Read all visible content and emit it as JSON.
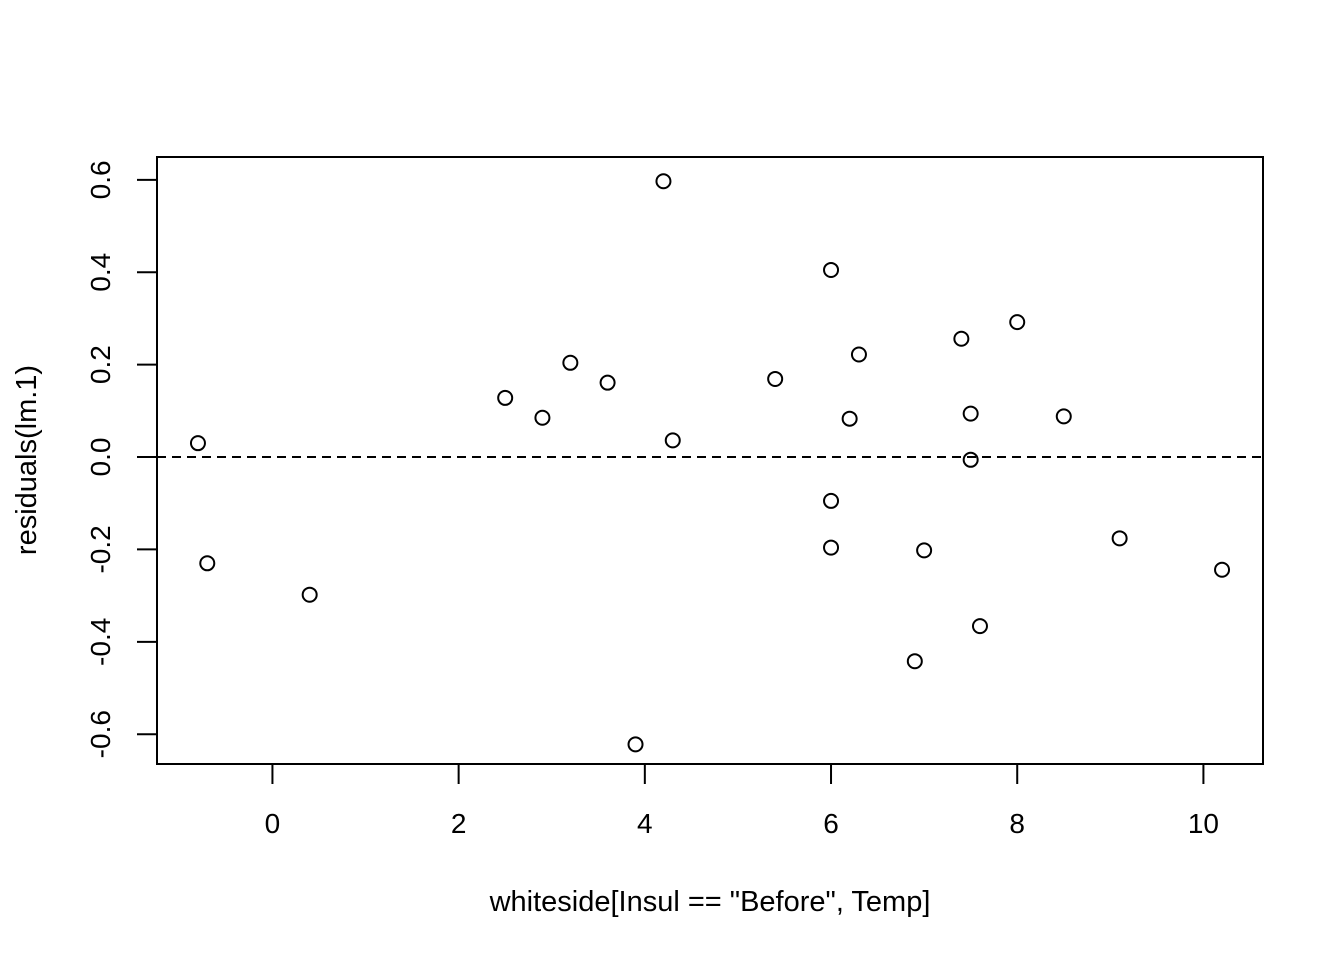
{
  "chart_data": {
    "type": "scatter",
    "xlabel": "whiteside[Insul == \"Before\", Temp]",
    "ylabel": "residuals(lm.1)",
    "xlim": [
      -1.24,
      10.64
    ],
    "ylim": [
      -0.6645,
      0.6495
    ],
    "x_ticks": [
      0,
      2,
      4,
      6,
      8,
      10
    ],
    "x_tick_labels": [
      "0",
      "2",
      "4",
      "6",
      "8",
      "10"
    ],
    "y_ticks": [
      -0.6,
      -0.4,
      -0.2,
      0.0,
      0.2,
      0.4,
      0.6
    ],
    "y_tick_labels": [
      "-0.6",
      "-0.4",
      "-0.2",
      "0.0",
      "0.2",
      "0.4",
      "0.6"
    ],
    "reference_line": {
      "y": 0,
      "style": "dashed"
    },
    "grid": false,
    "marker": "open-circle",
    "points": [
      {
        "x": -0.8,
        "y": 0.03
      },
      {
        "x": -0.7,
        "y": -0.23
      },
      {
        "x": 0.4,
        "y": -0.298
      },
      {
        "x": 2.5,
        "y": 0.128
      },
      {
        "x": 2.9,
        "y": 0.085
      },
      {
        "x": 3.2,
        "y": 0.204
      },
      {
        "x": 3.6,
        "y": 0.161
      },
      {
        "x": 3.9,
        "y": -0.622
      },
      {
        "x": 4.2,
        "y": 0.597
      },
      {
        "x": 4.3,
        "y": 0.036
      },
      {
        "x": 5.4,
        "y": 0.169
      },
      {
        "x": 6.0,
        "y": 0.405
      },
      {
        "x": 6.0,
        "y": -0.095
      },
      {
        "x": 6.0,
        "y": -0.196
      },
      {
        "x": 6.2,
        "y": 0.083
      },
      {
        "x": 6.3,
        "y": 0.222
      },
      {
        "x": 6.9,
        "y": -0.442
      },
      {
        "x": 7.0,
        "y": -0.202
      },
      {
        "x": 7.4,
        "y": 0.256
      },
      {
        "x": 7.5,
        "y": 0.094
      },
      {
        "x": 7.5,
        "y": -0.006
      },
      {
        "x": 7.6,
        "y": -0.366
      },
      {
        "x": 8.0,
        "y": 0.292
      },
      {
        "x": 8.5,
        "y": 0.088
      },
      {
        "x": 9.1,
        "y": -0.176
      },
      {
        "x": 10.2,
        "y": -0.244
      }
    ]
  }
}
